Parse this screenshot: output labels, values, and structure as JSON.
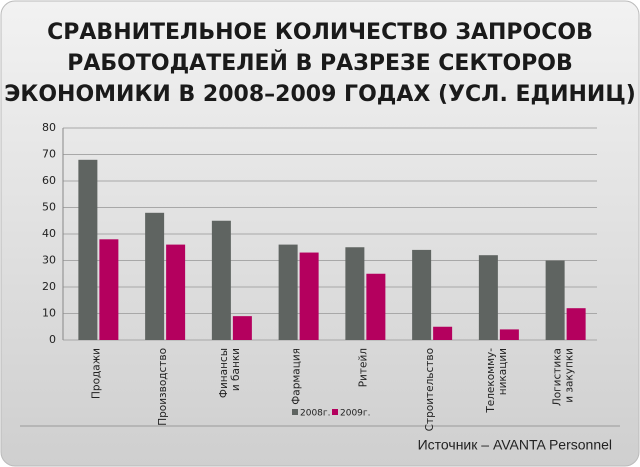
{
  "chart_data": {
    "type": "bar",
    "title": [
      "СРАВНИТЕЛЬНОЕ КОЛИЧЕСТВО ЗАПРОСОВ",
      "РАБОТОДАТЕЛЕЙ В РАЗРЕЗЕ СЕКТОРОВ",
      "ЭКОНОМИКИ В 2008–2009 ГОДАХ (УСЛ. ЕДИНИЦ)"
    ],
    "categories": [
      [
        "Продажи"
      ],
      [
        "Производство"
      ],
      [
        "Финансы",
        "и банки"
      ],
      [
        "Фармация"
      ],
      [
        "Ритейл"
      ],
      [
        "Строительство"
      ],
      [
        "Телекомму-",
        "никации"
      ],
      [
        "Логистика",
        "и закупки"
      ]
    ],
    "series": [
      {
        "name": "2008г.",
        "color": "#5f6461",
        "values": [
          68,
          48,
          45,
          36,
          35,
          34,
          32,
          30
        ]
      },
      {
        "name": "2009г.",
        "color": "#b4005e",
        "values": [
          38,
          36,
          9,
          33,
          25,
          5,
          4,
          12
        ]
      }
    ],
    "ylim": [
      0,
      80
    ],
    "yticks": [
      0,
      10,
      20,
      30,
      40,
      50,
      60,
      70,
      80
    ],
    "grid": true,
    "source": "Источник – AVANTA Personnel"
  }
}
